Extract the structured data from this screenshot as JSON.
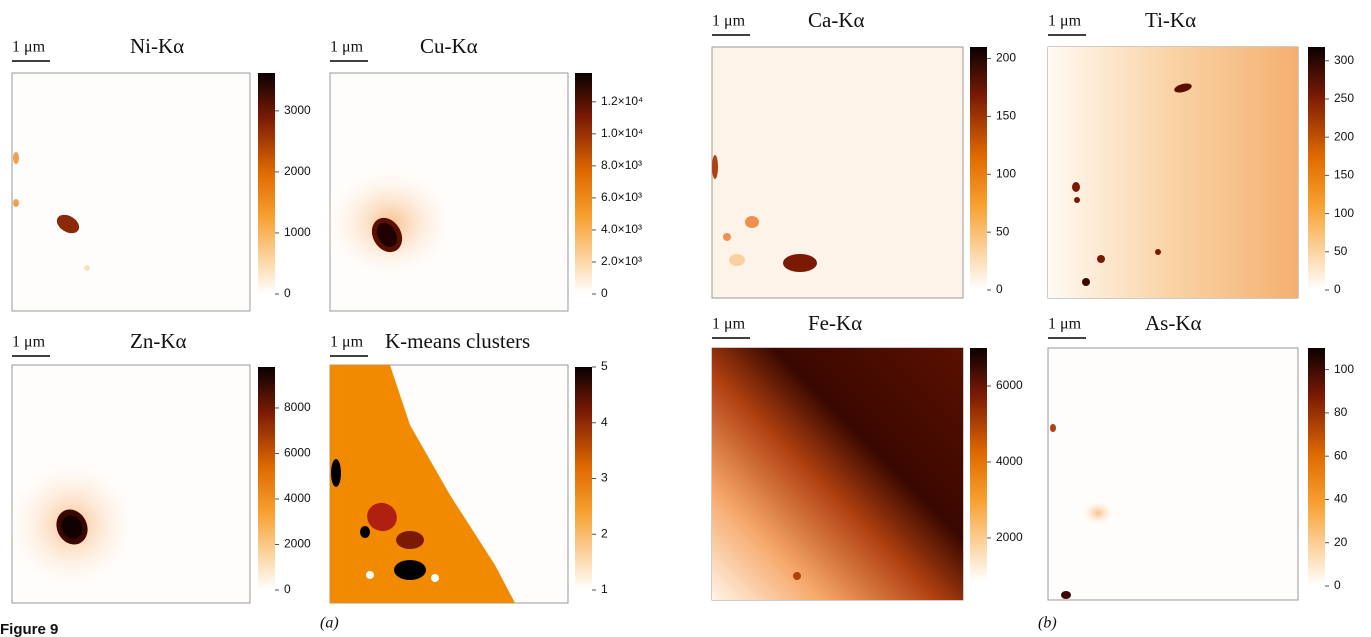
{
  "chart_data": [
    {
      "type": "heatmap",
      "title": "Ni-Kα",
      "scale_label": "1 μm",
      "ylim": [
        0,
        3620
      ],
      "yticks": [
        0,
        1000,
        2000,
        3000
      ]
    },
    {
      "type": "heatmap",
      "title": "Cu-Kα",
      "scale_label": "1 μm",
      "ylim": [
        0,
        13800
      ],
      "yticks": [
        0,
        {
          "value": 2000,
          "label": "2.0×10³"
        },
        {
          "value": 4000,
          "label": "4.0×10³"
        },
        {
          "value": 6000,
          "label": "6.0×10³"
        },
        {
          "value": 8000,
          "label": "8.0×10³"
        },
        {
          "value": 10000,
          "label": "1.0×10⁴"
        },
        {
          "value": 12000,
          "label": "1.2×10⁴"
        }
      ]
    },
    {
      "type": "heatmap",
      "title": "Zn-Kα",
      "scale_label": "1 μm",
      "ylim": [
        0,
        9800
      ],
      "yticks": [
        0,
        2000,
        4000,
        6000,
        8000
      ]
    },
    {
      "type": "heatmap",
      "title": "K-means clusters",
      "scale_label": "1 μm",
      "ylim": [
        1,
        5
      ],
      "yticks": [
        1,
        2,
        3,
        4,
        5
      ]
    },
    {
      "type": "heatmap",
      "title": "Ca-Kα",
      "scale_label": "1 μm",
      "ylim": [
        0,
        210
      ],
      "yticks": [
        0,
        50,
        100,
        150,
        200
      ]
    },
    {
      "type": "heatmap",
      "title": "Ti-Kα",
      "scale_label": "1 μm",
      "ylim": [
        0,
        318
      ],
      "yticks": [
        0,
        50,
        100,
        150,
        200,
        250,
        300
      ]
    },
    {
      "type": "heatmap",
      "title": "Fe-Kα",
      "scale_label": "1 μm",
      "ylim": [
        840,
        7000
      ],
      "yticks": [
        2000,
        4000,
        6000
      ]
    },
    {
      "type": "heatmap",
      "title": "As-Kα",
      "scale_label": "1 μm",
      "ylim": [
        0,
        110
      ],
      "yticks": [
        0,
        20,
        40,
        60,
        80,
        100
      ]
    }
  ],
  "figure_label": "Figure 9",
  "panel_labels": [
    "(a)",
    "(b)"
  ]
}
